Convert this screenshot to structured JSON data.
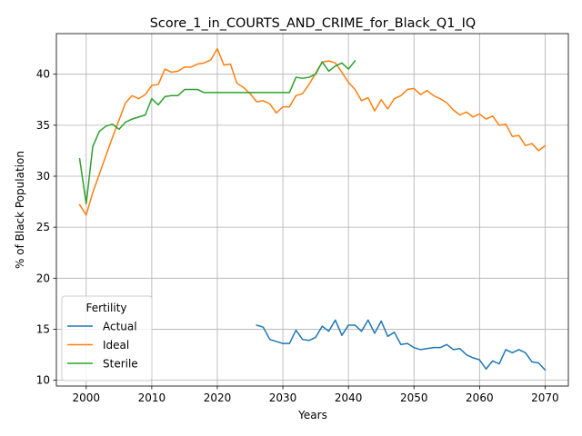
{
  "chart_data": {
    "type": "line",
    "title": "Score_1_in_COURTS_AND_CRIME_for_Black_Q1_IQ",
    "xlabel": "Years",
    "ylabel": "% of Black Population",
    "xlim": [
      1995.45,
      2073.55
    ],
    "ylim": [
      9.43,
      43.98
    ],
    "xticks": [
      2000,
      2010,
      2020,
      2030,
      2040,
      2050,
      2060,
      2070
    ],
    "yticks": [
      10,
      15,
      20,
      25,
      30,
      35,
      40
    ],
    "grid": true,
    "legend": {
      "title": "Fertility",
      "placement": "lower-left"
    },
    "series": [
      {
        "name": "Actual",
        "color": "#1f77b4",
        "x": [
          2026,
          2027,
          2028,
          2029,
          2030,
          2031,
          2032,
          2033,
          2034,
          2035,
          2036,
          2037,
          2038,
          2039,
          2040,
          2041,
          2042,
          2043,
          2044,
          2045,
          2046,
          2047,
          2048,
          2049,
          2050,
          2051,
          2052,
          2053,
          2054,
          2055,
          2056,
          2057,
          2058,
          2059,
          2060,
          2061,
          2062,
          2063,
          2064,
          2065,
          2066,
          2067,
          2068,
          2069,
          2070
        ],
        "values": [
          15.4,
          15.2,
          14.0,
          13.8,
          13.6,
          13.6,
          14.9,
          14.0,
          13.9,
          14.2,
          15.3,
          14.8,
          15.9,
          14.4,
          15.4,
          15.4,
          14.8,
          15.9,
          14.6,
          15.8,
          14.3,
          14.7,
          13.5,
          13.6,
          13.2,
          13.0,
          13.1,
          13.2,
          13.2,
          13.5,
          13.0,
          13.1,
          12.5,
          12.2,
          12.0,
          11.1,
          11.9,
          11.6,
          13.0,
          12.7,
          13.0,
          12.7,
          11.8,
          11.7,
          11.0
        ]
      },
      {
        "name": "Ideal",
        "color": "#ff7f0e",
        "x": [
          1999,
          2000,
          2001,
          2002,
          2003,
          2004,
          2005,
          2006,
          2007,
          2008,
          2009,
          2010,
          2011,
          2012,
          2013,
          2014,
          2015,
          2016,
          2017,
          2018,
          2019,
          2020,
          2021,
          2022,
          2023,
          2024,
          2025,
          2026,
          2027,
          2028,
          2029,
          2030,
          2031,
          2032,
          2033,
          2034,
          2035,
          2036,
          2037,
          2038,
          2039,
          2040,
          2041,
          2042,
          2043,
          2044,
          2045,
          2046,
          2047,
          2048,
          2049,
          2050,
          2051,
          2052,
          2053,
          2054,
          2055,
          2056,
          2057,
          2058,
          2059,
          2060,
          2061,
          2062,
          2063,
          2064,
          2065,
          2066,
          2067,
          2068,
          2069,
          2070
        ],
        "values": [
          27.2,
          26.2,
          28.4,
          30.2,
          32.0,
          33.8,
          35.5,
          37.2,
          37.9,
          37.6,
          38.0,
          38.9,
          39.0,
          40.5,
          40.2,
          40.3,
          40.7,
          40.7,
          41.0,
          41.1,
          41.4,
          42.5,
          40.9,
          41.0,
          39.1,
          38.7,
          38.1,
          37.3,
          37.4,
          37.1,
          36.2,
          36.8,
          36.8,
          37.9,
          38.1,
          39.0,
          40.1,
          41.2,
          41.3,
          41.1,
          40.2,
          39.2,
          38.5,
          37.4,
          37.7,
          36.4,
          37.5,
          36.6,
          37.6,
          37.9,
          38.5,
          38.6,
          38.0,
          38.4,
          37.9,
          37.6,
          37.2,
          36.5,
          36.0,
          36.3,
          35.8,
          36.1,
          35.6,
          35.9,
          35.0,
          35.1,
          33.9,
          34.0,
          33.0,
          33.2,
          32.5,
          33.0
        ]
      },
      {
        "name": "Sterile",
        "color": "#2ca02c",
        "x": [
          1999,
          2000,
          2001,
          2002,
          2003,
          2004,
          2005,
          2006,
          2007,
          2008,
          2009,
          2010,
          2011,
          2012,
          2013,
          2014,
          2015,
          2016,
          2017,
          2018,
          2019,
          2020,
          2021,
          2022,
          2023,
          2024,
          2025,
          2026,
          2027,
          2028,
          2029,
          2030,
          2031,
          2032,
          2033,
          2034,
          2035,
          2036,
          2037,
          2038,
          2039,
          2040,
          2041
        ],
        "values": [
          31.7,
          27.3,
          32.9,
          34.4,
          34.9,
          35.1,
          34.6,
          35.3,
          35.6,
          35.8,
          36.0,
          37.6,
          37.0,
          37.8,
          37.9,
          37.9,
          38.5,
          38.5,
          38.5,
          38.2,
          38.2,
          38.2,
          38.2,
          38.2,
          38.2,
          38.2,
          38.2,
          38.2,
          38.2,
          38.2,
          38.2,
          38.2,
          38.2,
          39.7,
          39.6,
          39.7,
          40.0,
          41.2,
          40.3,
          40.8,
          41.1,
          40.5,
          41.3
        ]
      }
    ]
  }
}
